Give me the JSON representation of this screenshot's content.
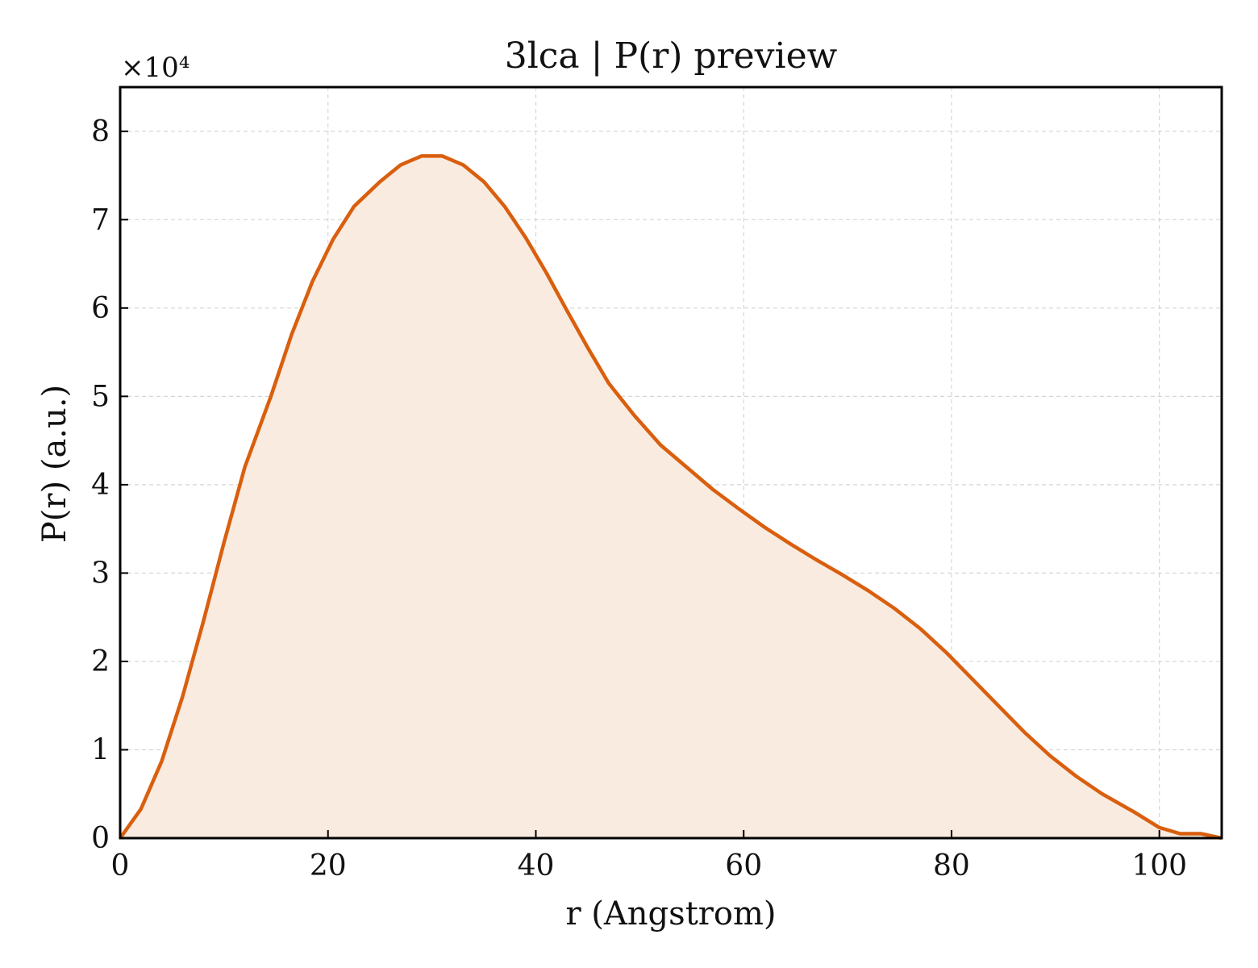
{
  "chart_data": {
    "type": "area",
    "title": "3lca | P(r) preview",
    "xlabel": "r (Angstrom)",
    "ylabel": "P(r) (a.u.)",
    "y_multiplier_label": "×10⁴",
    "xlim": [
      0,
      106
    ],
    "ylim": [
      0,
      8.5
    ],
    "y_scale_factor": 10000,
    "xticks": [
      0,
      20,
      40,
      60,
      80,
      100
    ],
    "yticks": [
      0,
      1,
      2,
      3,
      4,
      5,
      6,
      7,
      8
    ],
    "xtick_labels": [
      "0",
      "20",
      "40",
      "60",
      "80",
      "100"
    ],
    "ytick_labels": [
      "0",
      "1",
      "2",
      "3",
      "4",
      "5",
      "6",
      "7",
      "8"
    ],
    "grid": true,
    "line_color": "#d95f0e",
    "fill_color": "#f9ebe0",
    "x": [
      0,
      2,
      4,
      6,
      8,
      10,
      12,
      14.5,
      16.5,
      18.5,
      20.5,
      22.5,
      25,
      27,
      29,
      31,
      33,
      35,
      37,
      39,
      41,
      43,
      45,
      47,
      49.5,
      52,
      54.5,
      57,
      59.5,
      62,
      64.5,
      67,
      69.5,
      72,
      74.5,
      77,
      79.5,
      82,
      84.5,
      87,
      89.5,
      92,
      94.5,
      97.5,
      100,
      102,
      104,
      106
    ],
    "y": [
      0,
      0.33,
      0.87,
      1.6,
      2.45,
      3.35,
      4.2,
      5.0,
      5.7,
      6.3,
      6.78,
      7.15,
      7.43,
      7.62,
      7.72,
      7.72,
      7.62,
      7.43,
      7.15,
      6.8,
      6.4,
      5.97,
      5.55,
      5.15,
      4.78,
      4.45,
      4.2,
      3.95,
      3.73,
      3.52,
      3.33,
      3.15,
      2.98,
      2.8,
      2.6,
      2.37,
      2.1,
      1.8,
      1.5,
      1.2,
      0.93,
      0.7,
      0.5,
      0.3,
      0.12,
      0.05,
      0.05,
      0.0
    ]
  }
}
